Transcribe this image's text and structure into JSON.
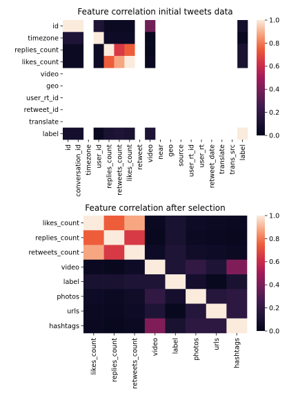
{
  "chart_data": [
    {
      "type": "heatmap",
      "title": "Feature correlation initial tweets data",
      "y_labels": [
        "id",
        "timezone",
        "replies_count",
        "likes_count",
        "video",
        "geo",
        "user_rt_id",
        "retweet_id",
        "translate",
        "label"
      ],
      "x_labels": [
        "id",
        "conversation_id",
        "timezone",
        "user_id",
        "replies_count",
        "retweets_count",
        "likes_count",
        "retweet",
        "video",
        "near",
        "geo",
        "source",
        "user_rt_id",
        "user_rt",
        "retweet_date",
        "translate",
        "trans_src",
        "label"
      ],
      "values": [
        [
          1.0,
          1.0,
          null,
          0.12,
          0.04,
          0.04,
          0.04,
          null,
          0.38,
          null,
          null,
          null,
          null,
          null,
          null,
          null,
          null,
          0.08
        ],
        [
          null,
          null,
          null,
          null,
          null,
          null,
          null,
          null,
          null,
          null,
          null,
          null,
          null,
          null,
          null,
          null,
          null,
          null
        ],
        [
          0.12,
          0.12,
          null,
          1.0,
          0.05,
          0.05,
          0.05,
          null,
          0.02,
          null,
          null,
          null,
          null,
          null,
          null,
          null,
          null,
          0.03
        ],
        [
          0.04,
          0.04,
          null,
          0.05,
          1.0,
          0.65,
          0.75,
          null,
          0.02,
          null,
          null,
          null,
          null,
          null,
          null,
          null,
          null,
          0.1
        ],
        [
          0.04,
          0.04,
          null,
          0.05,
          0.65,
          1.0,
          0.88,
          null,
          0.02,
          null,
          null,
          null,
          null,
          null,
          null,
          null,
          null,
          0.12
        ],
        [
          0.04,
          0.04,
          null,
          0.05,
          0.75,
          0.88,
          1.0,
          null,
          0.03,
          null,
          null,
          null,
          null,
          null,
          null,
          null,
          null,
          0.1
        ],
        [
          0.38,
          0.38,
          null,
          0.02,
          0.02,
          0.02,
          0.03,
          null,
          1.0,
          null,
          null,
          null,
          null,
          null,
          null,
          null,
          null,
          0.12
        ],
        [
          null,
          null,
          null,
          null,
          null,
          null,
          null,
          null,
          null,
          null,
          null,
          null,
          null,
          null,
          null,
          null,
          null,
          null
        ],
        [
          null,
          null,
          null,
          null,
          null,
          null,
          null,
          null,
          null,
          null,
          null,
          null,
          null,
          null,
          null,
          null,
          null,
          null
        ],
        [
          null,
          null,
          null,
          null,
          null,
          null,
          null,
          null,
          null,
          null,
          null,
          null,
          null,
          null,
          null,
          null,
          null,
          null
        ],
        [
          null,
          null,
          null,
          null,
          null,
          null,
          null,
          null,
          null,
          null,
          null,
          null,
          null,
          null,
          null,
          null,
          null,
          null
        ],
        [
          null,
          null,
          null,
          null,
          null,
          null,
          null,
          null,
          null,
          null,
          null,
          null,
          null,
          null,
          null,
          null,
          null,
          null
        ],
        [
          null,
          null,
          null,
          null,
          null,
          null,
          null,
          null,
          null,
          null,
          null,
          null,
          null,
          null,
          null,
          null,
          null,
          null
        ],
        [
          null,
          null,
          null,
          null,
          null,
          null,
          null,
          null,
          null,
          null,
          null,
          null,
          null,
          null,
          null,
          null,
          null,
          null
        ],
        [
          null,
          null,
          null,
          null,
          null,
          null,
          null,
          null,
          null,
          null,
          null,
          null,
          null,
          null,
          null,
          null,
          null,
          null
        ],
        [
          null,
          null,
          null,
          null,
          null,
          null,
          null,
          null,
          null,
          null,
          null,
          null,
          null,
          null,
          null,
          null,
          null,
          null
        ],
        [
          null,
          null,
          null,
          null,
          null,
          null,
          null,
          null,
          null,
          null,
          null,
          null,
          null,
          null,
          null,
          null,
          null,
          null
        ],
        [
          0.08,
          0.08,
          null,
          0.03,
          0.1,
          0.12,
          0.1,
          null,
          0.12,
          null,
          null,
          null,
          null,
          null,
          null,
          null,
          null,
          1.0
        ]
      ],
      "row_index": [
        0,
        2,
        3,
        5,
        8,
        10,
        12,
        13,
        15,
        17
      ],
      "colorbar": {
        "min": 0.0,
        "max": 1.0,
        "ticks": [
          "0.0",
          "0.2",
          "0.4",
          "0.6",
          "0.8",
          "1.0"
        ]
      }
    },
    {
      "type": "heatmap",
      "title": "Feature correlation after selection",
      "y_labels": [
        "likes_count",
        "replies_count",
        "retweets_count",
        "video",
        "label",
        "photos",
        "urls",
        "hashtags"
      ],
      "x_labels": [
        "likes_count",
        "replies_count",
        "retweets_count",
        "video",
        "label",
        "photos",
        "urls",
        "hashtags"
      ],
      "values": [
        [
          1.0,
          0.75,
          0.88,
          0.03,
          0.1,
          0.05,
          0.04,
          0.03
        ],
        [
          0.75,
          1.0,
          0.65,
          0.02,
          0.1,
          0.04,
          0.03,
          0.02
        ],
        [
          0.88,
          0.65,
          1.0,
          0.05,
          0.12,
          0.06,
          0.05,
          0.04
        ],
        [
          0.03,
          0.02,
          0.05,
          1.0,
          0.12,
          0.2,
          0.12,
          0.42
        ],
        [
          0.1,
          0.1,
          0.12,
          0.12,
          1.0,
          0.08,
          0.02,
          0.1
        ],
        [
          0.05,
          0.04,
          0.06,
          0.2,
          0.08,
          1.0,
          0.15,
          0.18
        ],
        [
          0.04,
          0.03,
          0.05,
          0.12,
          0.02,
          0.15,
          1.0,
          0.18
        ],
        [
          0.03,
          0.02,
          0.04,
          0.42,
          0.1,
          0.18,
          0.18,
          1.0
        ]
      ],
      "colorbar": {
        "min": 0.0,
        "max": 1.0,
        "ticks": [
          "0.0",
          "0.2",
          "0.4",
          "0.6",
          "0.8",
          "1.0"
        ]
      }
    }
  ]
}
